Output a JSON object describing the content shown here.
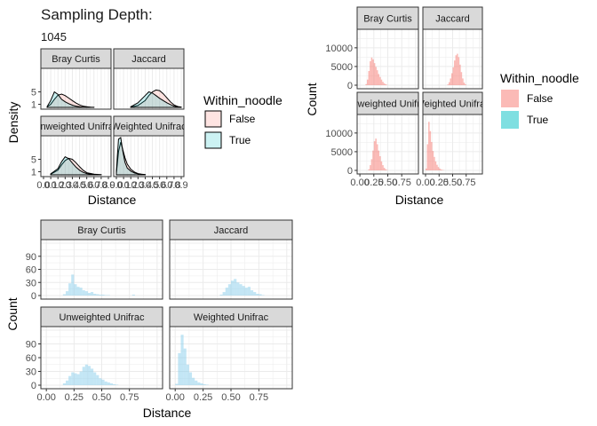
{
  "header": {
    "title": "Sampling Depth:",
    "subtitle": "1045"
  },
  "colors": {
    "false_fill": "#F8766D",
    "true_fill": "#00BFC4",
    "blue_fill": "#87CEEB",
    "strip_bg": "#D9D9D9",
    "grid": "#EBEBEB"
  },
  "chart_data": [
    {
      "id": "density",
      "type": "area",
      "xlabel": "Distance",
      "ylabel": "Density",
      "legend": {
        "title": "Within_noodle",
        "position": "right",
        "entries": [
          "False",
          "True"
        ]
      },
      "facets": [
        "Bray Curtis",
        "Jaccard",
        "Weighted Unifrac",
        "Unweighted Unifrac"
      ],
      "xlim": [
        0,
        0.9
      ],
      "ylim": [
        0,
        12
      ],
      "x_tick_labels": [
        "0.0",
        "0.1",
        "0.2",
        "0.3",
        "0.4",
        "0.5",
        "0.6",
        "0.7",
        "0.8",
        "0.9"
      ],
      "y_tick_labels": [
        "1",
        "5"
      ],
      "series": [
        {
          "facet": "Bray Curtis",
          "name": "False",
          "x": [
            0.05,
            0.1,
            0.15,
            0.2,
            0.25,
            0.3,
            0.35,
            0.4,
            0.45,
            0.5,
            0.55,
            0.6,
            0.65,
            0.7
          ],
          "y": [
            0.2,
            1.0,
            2.6,
            3.9,
            4.3,
            3.8,
            3.0,
            2.2,
            1.4,
            0.8,
            0.4,
            0.2,
            0.1,
            0.05
          ]
        },
        {
          "facet": "Bray Curtis",
          "name": "True",
          "x": [
            0.05,
            0.1,
            0.15,
            0.2,
            0.25,
            0.3,
            0.35,
            0.4,
            0.45,
            0.5,
            0.55,
            0.6,
            0.65,
            0.7
          ],
          "y": [
            0.3,
            2.2,
            5.0,
            4.2,
            2.6,
            1.8,
            1.2,
            0.7,
            0.4,
            0.2,
            0.1,
            0.05,
            0.02,
            0.01
          ]
        },
        {
          "facet": "Jaccard",
          "name": "False",
          "x": [
            0.2,
            0.3,
            0.4,
            0.45,
            0.5,
            0.55,
            0.6,
            0.65,
            0.7,
            0.75,
            0.8,
            0.85,
            0.9
          ],
          "y": [
            0.1,
            0.6,
            2.2,
            3.8,
            5.0,
            5.6,
            5.4,
            4.4,
            3.1,
            1.8,
            0.8,
            0.3,
            0.1
          ]
        },
        {
          "facet": "Jaccard",
          "name": "True",
          "x": [
            0.2,
            0.3,
            0.4,
            0.45,
            0.5,
            0.55,
            0.6,
            0.65,
            0.7,
            0.75,
            0.8,
            0.85,
            0.9
          ],
          "y": [
            0.2,
            1.5,
            3.8,
            5.0,
            4.6,
            3.8,
            2.9,
            2.2,
            1.5,
            0.9,
            0.4,
            0.15,
            0.05
          ]
        },
        {
          "facet": "Weighted Unifrac",
          "name": "False",
          "x": [
            0.0,
            0.03,
            0.06,
            0.09,
            0.12,
            0.15,
            0.2,
            0.25,
            0.3,
            0.35,
            0.4
          ],
          "y": [
            0.5,
            7.5,
            10.5,
            8.0,
            5.5,
            3.5,
            1.8,
            0.9,
            0.4,
            0.2,
            0.1
          ]
        },
        {
          "facet": "Weighted Unifrac",
          "name": "True",
          "x": [
            0.0,
            0.03,
            0.06,
            0.09,
            0.12,
            0.15,
            0.2,
            0.25,
            0.3,
            0.35,
            0.4
          ],
          "y": [
            1.0,
            11.5,
            12.0,
            7.5,
            4.0,
            2.2,
            1.2,
            0.6,
            0.3,
            0.1,
            0.05
          ]
        },
        {
          "facet": "Unweighted Unifrac",
          "name": "False",
          "x": [
            0.1,
            0.2,
            0.25,
            0.3,
            0.35,
            0.4,
            0.45,
            0.5,
            0.55,
            0.6,
            0.7,
            0.8
          ],
          "y": [
            0.2,
            1.5,
            3.2,
            4.6,
            5.3,
            5.0,
            3.9,
            2.6,
            1.5,
            0.7,
            0.2,
            0.05
          ]
        },
        {
          "facet": "Unweighted Unifrac",
          "name": "True",
          "x": [
            0.1,
            0.2,
            0.25,
            0.3,
            0.35,
            0.4,
            0.45,
            0.5,
            0.55,
            0.6,
            0.7,
            0.8
          ],
          "y": [
            0.3,
            2.0,
            4.2,
            5.8,
            5.2,
            3.8,
            2.5,
            1.5,
            0.8,
            0.4,
            0.1,
            0.02
          ]
        }
      ]
    },
    {
      "id": "count_within",
      "type": "bar",
      "xlabel": "Distance",
      "ylabel": "Count",
      "legend": {
        "title": "Within_noodle",
        "position": "right",
        "entries": [
          "False",
          "True"
        ]
      },
      "facets": [
        "Bray Curtis",
        "Jaccard",
        "Weighted Unifrac",
        "Unweighted Unifrac"
      ],
      "xlim": [
        0,
        1
      ],
      "ylim": [
        0,
        14000
      ],
      "x_ticks": [
        0,
        0.25,
        0.5,
        0.75
      ],
      "x_tick_labels": [
        "0.00",
        "0.25",
        "0.50",
        "0.75"
      ],
      "y_ticks": [
        0,
        5000,
        10000
      ],
      "y_tick_labels": [
        "0",
        "5000",
        "10000"
      ],
      "bin_width": 0.025,
      "panels": [
        {
          "facet": "Bray Curtis",
          "bin_start": 0.1,
          "values": [
            300,
            1500,
            3800,
            6400,
            7400,
            6900,
            5900,
            4900,
            4000,
            3000,
            2200,
            1500,
            900,
            500,
            250,
            100
          ]
        },
        {
          "facet": "Jaccard",
          "bin_start": 0.4,
          "values": [
            200,
            800,
            1800,
            3200,
            4800,
            6600,
            8000,
            8400,
            7500,
            5500,
            3500,
            1800,
            700,
            250
          ]
        },
        {
          "facet": "Weighted Unifrac",
          "bin_start": 0.0,
          "values": [
            500,
            7000,
            13000,
            10500,
            7600,
            5200,
            3600,
            2400,
            1500,
            900,
            500,
            250,
            120,
            60
          ]
        },
        {
          "facet": "Unweighted Unifrac",
          "bin_start": 0.15,
          "values": [
            300,
            1400,
            3000,
            5300,
            7800,
            8500,
            7000,
            5300,
            3800,
            2400,
            1400,
            700,
            300,
            120
          ]
        }
      ]
    },
    {
      "id": "count_between",
      "type": "bar",
      "xlabel": "Distance",
      "ylabel": "Count",
      "facets": [
        "Bray Curtis",
        "Jaccard",
        "Unweighted Unifrac",
        "Weighted Unifrac"
      ],
      "xlim": [
        0,
        1
      ],
      "ylim": [
        0,
        120
      ],
      "x_ticks": [
        0,
        0.25,
        0.5,
        0.75
      ],
      "x_tick_labels": [
        "0.00",
        "0.25",
        "0.50",
        "0.75"
      ],
      "y_ticks": [
        0,
        30,
        60,
        90
      ],
      "y_tick_labels": [
        "0",
        "30",
        "60",
        "90"
      ],
      "bin_width": 0.025,
      "panels": [
        {
          "facet": "Bray Curtis",
          "bin_start": 0.15,
          "values": [
            3,
            10,
            28,
            48,
            26,
            20,
            18,
            12,
            10,
            6,
            8,
            4,
            3,
            2,
            2,
            1,
            1,
            0,
            0,
            0,
            0,
            0,
            0,
            0,
            0,
            2,
            0
          ]
        },
        {
          "facet": "Jaccard",
          "bin_start": 0.4,
          "values": [
            2,
            8,
            18,
            26,
            34,
            38,
            30,
            26,
            22,
            18,
            20,
            12,
            8,
            4,
            3,
            1
          ]
        },
        {
          "facet": "Unweighted Unifrac",
          "bin_start": 0.15,
          "values": [
            4,
            10,
            20,
            28,
            26,
            24,
            30,
            40,
            45,
            42,
            36,
            28,
            22,
            15,
            12,
            8,
            6,
            4,
            2,
            1
          ]
        },
        {
          "facet": "Weighted Unifrac",
          "bin_start": 0.0,
          "values": [
            3,
            70,
            110,
            80,
            45,
            28,
            16,
            10,
            6,
            4,
            2,
            1
          ]
        }
      ]
    }
  ]
}
